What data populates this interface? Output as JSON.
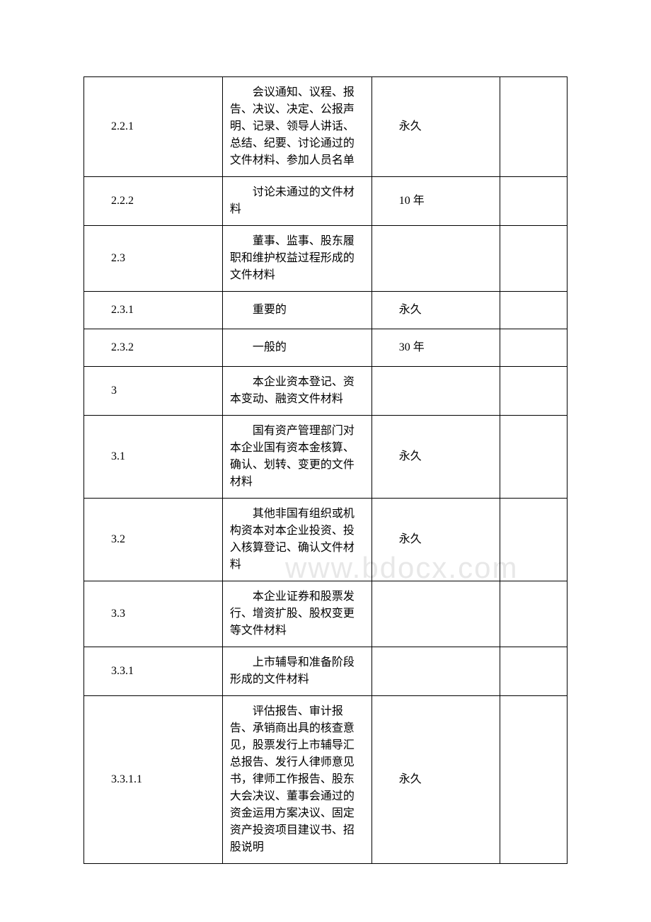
{
  "watermark": "www.bdocx.com",
  "table": {
    "columns": {
      "col1_width": 195,
      "col2_width": 210,
      "col3_width": 180,
      "col4_width": 95
    },
    "rows": [
      {
        "code": "2.2.1",
        "desc": "会议通知、议程、报告、决议、决定、公报声明、记录、领导人讲话、总结、纪要、讨论通过的文件材料、参加人员名单",
        "period": "永久",
        "note": "",
        "multiline": true
      },
      {
        "code": "2.2.2",
        "desc": "讨论未通过的文件材料",
        "period": "10 年",
        "note": "",
        "multiline": true
      },
      {
        "code": "2.3",
        "desc": "董事、监事、股东履职和维护权益过程形成的文件材料",
        "period": "",
        "note": "",
        "multiline": true
      },
      {
        "code": "2.3.1",
        "desc": "重要的",
        "period": "永久",
        "note": "",
        "multiline": false
      },
      {
        "code": "2.3.2",
        "desc": "一般的",
        "period": "30 年",
        "note": "",
        "multiline": false
      },
      {
        "code": "3",
        "desc": "本企业资本登记、资本变动、融资文件材料",
        "period": "",
        "note": "",
        "multiline": true
      },
      {
        "code": "3.1",
        "desc": "国有资产管理部门对本企业国有资本金核算、确认、划转、变更的文件材料",
        "period": "永久",
        "note": "",
        "multiline": true
      },
      {
        "code": "3.2",
        "desc": "其他非国有组织或机构资本对本企业投资、投入核算登记、确认文件材料",
        "period": "永久",
        "note": "",
        "multiline": true
      },
      {
        "code": "3.3",
        "desc": "本企业证券和股票发行、增资扩股、股权变更等文件材料",
        "period": "",
        "note": "",
        "multiline": true
      },
      {
        "code": "3.3.1",
        "desc": "上市辅导和准备阶段形成的文件材料",
        "period": "",
        "note": "",
        "multiline": true
      },
      {
        "code": "3.3.1.1",
        "desc": "评估报告、审计报告、承销商出具的核查意见，股票发行上市辅导汇总报告、发行人律师意见书，律师工作报告、股东大会决议、董事会通过的资金运用方案决议、固定资产投资项目建议书、招股说明",
        "period": "永久",
        "note": "",
        "multiline": true
      }
    ]
  },
  "styling": {
    "background_color": "#ffffff",
    "border_color": "#000000",
    "text_color": "#000000",
    "watermark_color": "#e8e8e8",
    "font_size": 16,
    "font_family": "SimSun"
  }
}
